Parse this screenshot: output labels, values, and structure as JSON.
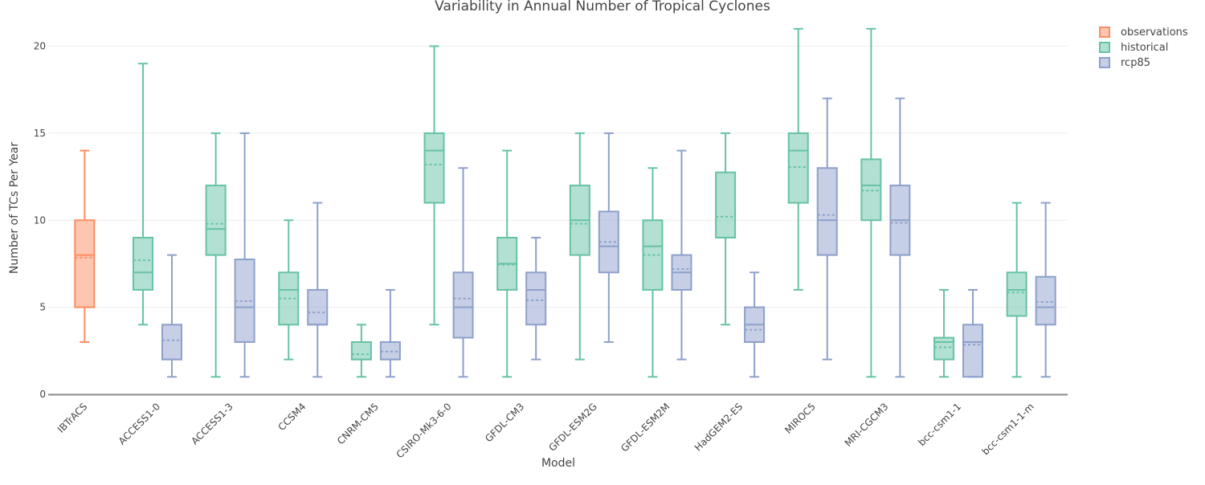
{
  "chart_data": {
    "type": "box",
    "title": "Variability in Annual Number of Tropical Cyclones",
    "xlabel": "Model",
    "ylabel": "Number of TCs Per Year",
    "ylim": [
      0,
      21.5
    ],
    "yticks": [
      0,
      5,
      10,
      15,
      20
    ],
    "grid": true,
    "legend_position": "top-right",
    "categories": [
      "IBTrACS",
      "ACCESS1-0",
      "ACCESS1-3",
      "CCSM4",
      "CNRM-CM5",
      "CSIRO-Mk3-6-0",
      "GFDL-CM3",
      "GFDL-ESM2G",
      "GFDL-ESM2M",
      "HadGEM2-ES",
      "MIROC5",
      "MRI-CGCM3",
      "bcc-csm1-1",
      "bcc-csm1-1-m"
    ],
    "series": [
      {
        "name": "observations",
        "color": "#fc8d62",
        "boxes": [
          {
            "category": "IBTrACS",
            "min": 3,
            "q1": 5,
            "median": 8,
            "mean": 7.85,
            "q3": 10,
            "max": 14
          }
        ]
      },
      {
        "name": "historical",
        "color": "#66c2a5",
        "boxes": [
          {
            "category": "ACCESS1-0",
            "min": 4,
            "q1": 6,
            "median": 7,
            "mean": 7.7,
            "q3": 9,
            "max": 19
          },
          {
            "category": "ACCESS1-3",
            "min": 1,
            "q1": 8,
            "median": 9.5,
            "mean": 9.8,
            "q3": 12,
            "max": 15
          },
          {
            "category": "CCSM4",
            "min": 2,
            "q1": 4,
            "median": 6,
            "mean": 5.5,
            "q3": 7,
            "max": 10
          },
          {
            "category": "CNRM-CM5",
            "min": 1,
            "q1": 2,
            "median": 2,
            "mean": 2.3,
            "q3": 3,
            "max": 4
          },
          {
            "category": "CSIRO-Mk3-6-0",
            "min": 4,
            "q1": 11,
            "median": 14,
            "mean": 13.2,
            "q3": 15,
            "max": 20
          },
          {
            "category": "GFDL-CM3",
            "min": 1,
            "q1": 6,
            "median": 7.5,
            "mean": 7.45,
            "q3": 9,
            "max": 14
          },
          {
            "category": "GFDL-ESM2G",
            "min": 2,
            "q1": 8,
            "median": 10,
            "mean": 9.8,
            "q3": 12,
            "max": 15
          },
          {
            "category": "GFDL-ESM2M",
            "min": 1,
            "q1": 6,
            "median": 8.5,
            "mean": 8,
            "q3": 10,
            "max": 13
          },
          {
            "category": "HadGEM2-ES",
            "min": 4,
            "q1": 9,
            "median": 9,
            "mean": 10.2,
            "q3": 12.75,
            "max": 15
          },
          {
            "category": "MIROC5",
            "min": 6,
            "q1": 11,
            "median": 14,
            "mean": 13.05,
            "q3": 15,
            "max": 21
          },
          {
            "category": "MRI-CGCM3",
            "min": 1,
            "q1": 10,
            "median": 12,
            "mean": 11.7,
            "q3": 13.5,
            "max": 21
          },
          {
            "category": "bcc-csm1-1",
            "min": 1,
            "q1": 2,
            "median": 3,
            "mean": 2.7,
            "q3": 3.25,
            "max": 6
          },
          {
            "category": "bcc-csm1-1-m",
            "min": 1,
            "q1": 4.5,
            "median": 6,
            "mean": 5.85,
            "q3": 7,
            "max": 11
          }
        ]
      },
      {
        "name": "rcp85",
        "color": "#8da0cb",
        "boxes": [
          {
            "category": "ACCESS1-0",
            "min": 1,
            "q1": 2,
            "median": 2,
            "mean": 3.1,
            "q3": 4,
            "max": 8
          },
          {
            "category": "ACCESS1-3",
            "min": 1,
            "q1": 3,
            "median": 5,
            "mean": 5.35,
            "q3": 7.75,
            "max": 15
          },
          {
            "category": "CCSM4",
            "min": 1,
            "q1": 4,
            "median": 4,
            "mean": 4.7,
            "q3": 6,
            "max": 11
          },
          {
            "category": "CNRM-CM5",
            "min": 1,
            "q1": 2,
            "median": 2,
            "mean": 2.45,
            "q3": 3,
            "max": 6
          },
          {
            "category": "CSIRO-Mk3-6-0",
            "min": 1,
            "q1": 3.25,
            "median": 5,
            "mean": 5.5,
            "q3": 7,
            "max": 13
          },
          {
            "category": "GFDL-CM3",
            "min": 2,
            "q1": 4,
            "median": 6,
            "mean": 5.4,
            "q3": 7,
            "max": 9
          },
          {
            "category": "GFDL-ESM2G",
            "min": 3,
            "q1": 7,
            "median": 8.5,
            "mean": 8.75,
            "q3": 10.5,
            "max": 15
          },
          {
            "category": "GFDL-ESM2M",
            "min": 2,
            "q1": 6,
            "median": 7,
            "mean": 7.2,
            "q3": 8,
            "max": 14
          },
          {
            "category": "HadGEM2-ES",
            "min": 1,
            "q1": 3,
            "median": 4,
            "mean": 3.7,
            "q3": 5,
            "max": 7
          },
          {
            "category": "MIROC5",
            "min": 2,
            "q1": 8,
            "median": 10,
            "mean": 10.3,
            "q3": 13,
            "max": 17
          },
          {
            "category": "MRI-CGCM3",
            "min": 1,
            "q1": 8,
            "median": 10,
            "mean": 9.85,
            "q3": 12,
            "max": 17
          },
          {
            "category": "bcc-csm1-1",
            "min": 1,
            "q1": 1,
            "median": 3,
            "mean": 2.85,
            "q3": 4,
            "max": 6
          },
          {
            "category": "bcc-csm1-1-m",
            "min": 1,
            "q1": 4,
            "median": 5,
            "mean": 5.3,
            "q3": 6.75,
            "max": 11
          }
        ]
      }
    ]
  }
}
